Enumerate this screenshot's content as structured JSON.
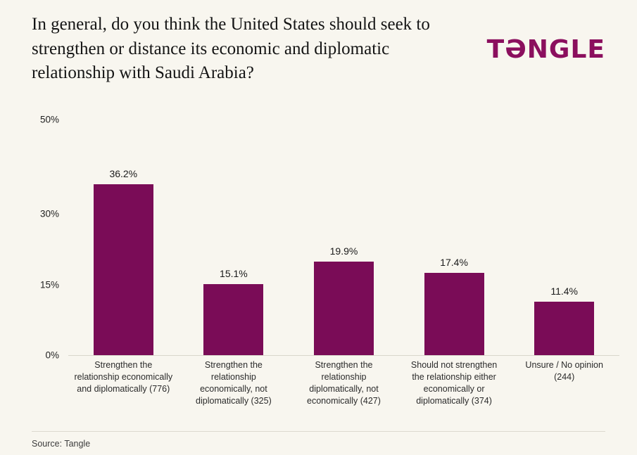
{
  "header": {
    "title": "In general, do you think the United States should seek to strengthen or distance its economic and diplomatic relationship with Saudi Arabia?",
    "logo": "TƏNGLE"
  },
  "chart_data": {
    "type": "bar",
    "categories": [
      "Strengthen the relationship economically and diplomatically (776)",
      "Strengthen the relationship economically, not diplomatically (325)",
      "Strengthen the relationship diplomatically, not economically (427)",
      "Should not strengthen the relationship either economically or diplomatically (374)",
      "Unsure / No opinion (244)"
    ],
    "values": [
      36.2,
      15.1,
      19.9,
      17.4,
      11.4
    ],
    "value_labels": [
      "36.2%",
      "15.1%",
      "19.9%",
      "17.4%",
      "11.4%"
    ],
    "title": "In general, do you think the United States should seek to strengthen or distance its economic and diplomatic relationship with Saudi Arabia?",
    "xlabel": "",
    "ylabel": "",
    "ylim": [
      0,
      50
    ],
    "yticks": [
      0,
      15,
      30,
      50
    ],
    "ytick_labels": [
      "0%",
      "15%",
      "30%",
      "50%"
    ],
    "bar_color": "#7a0c57",
    "grid": false,
    "legend": false
  },
  "footer": {
    "source": "Source: Tangle"
  }
}
